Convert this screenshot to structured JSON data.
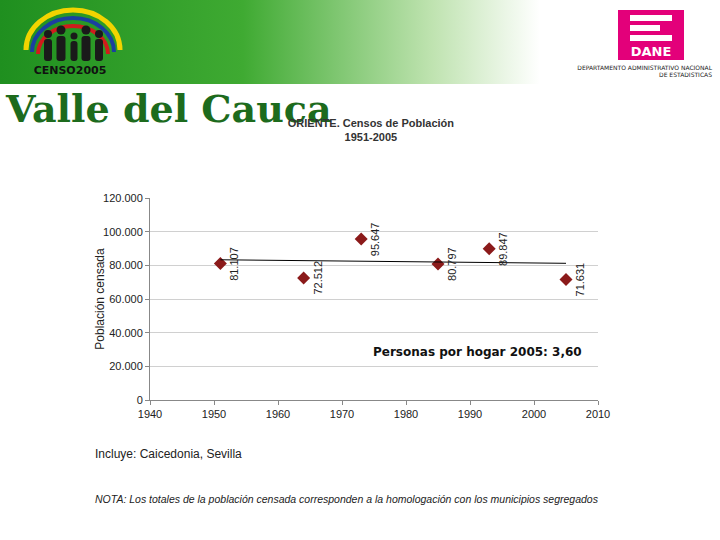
{
  "header": {
    "logo_left": "CENSO2005",
    "logo_right": "DANE",
    "logo_right_caption": "DEPARTAMENTO ADMINISTRATIVO NACIONAL DE ESTADISTICAS",
    "title": "Valle del Cauca"
  },
  "chart_data": {
    "type": "scatter",
    "title": "ORIENTE. Censos de Población",
    "subtitle": "1951-2005",
    "y_label": "Población censada",
    "xlim": [
      1940,
      2010
    ],
    "xticks": [
      1940,
      1950,
      1960,
      1970,
      1980,
      1990,
      2000,
      2010
    ],
    "ylim": [
      0,
      120000
    ],
    "yticks": [
      0,
      {
        "value": 20000,
        "label": "20.000"
      },
      {
        "value": 40000,
        "label": "40.000"
      },
      {
        "value": 60000,
        "label": "60.000"
      },
      {
        "value": 80000,
        "label": "80.000"
      },
      {
        "value": 100000,
        "label": "100.000"
      },
      {
        "value": 120000,
        "label": "120.000"
      }
    ],
    "grid": true,
    "series": [
      {
        "type": "scatter",
        "marker": "diamond",
        "color": "#8b1a1a",
        "data_labels": true,
        "x": [
          1951,
          1964,
          1973,
          1985,
          1993,
          2005
        ],
        "values": [
          81107,
          72512,
          95647,
          80797,
          89847,
          71631
        ],
        "value_labels": [
          "81.107",
          "72.512",
          "95.647",
          "80.797",
          "89.847",
          "71.631"
        ]
      },
      {
        "type": "line",
        "line_style": "solid",
        "color": "#000000",
        "x": [
          1951,
          2005
        ],
        "values": [
          83300,
          81200
        ]
      }
    ],
    "annotations": [
      {
        "text": "Personas por hogar 2005: 3,60"
      }
    ]
  },
  "notes": {
    "includes": "Incluye: Caicedonia, Sevilla",
    "note": "NOTA: Los totales de la población censada corresponden a la homologación con los municipios segregados"
  }
}
